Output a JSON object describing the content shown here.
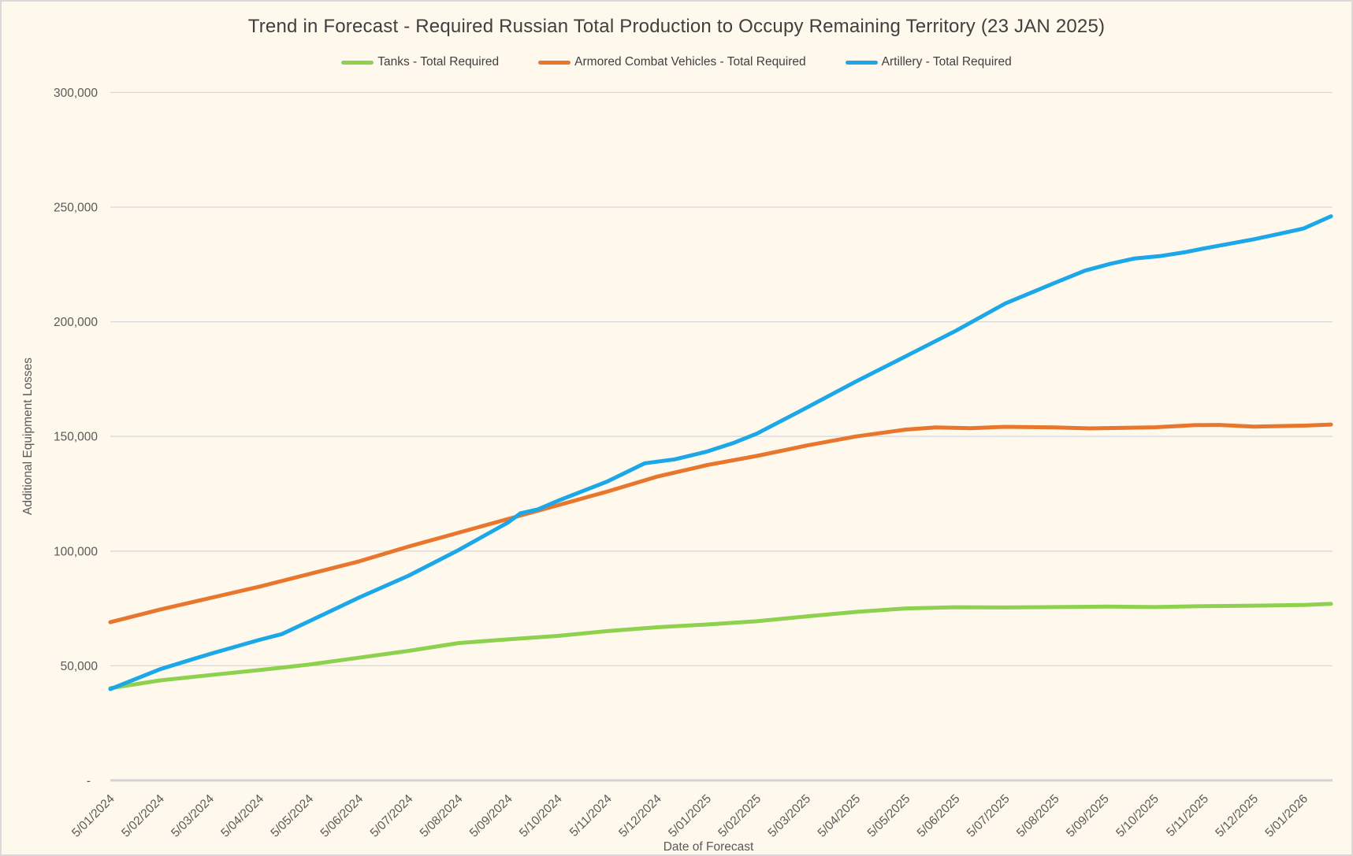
{
  "window": {
    "background_color": "#FFF9ED",
    "border_color": "#D9D9D9",
    "gridline_color": "#D9D9D9",
    "axis_line_color": "#D2D2D2",
    "title_color": "#3F3F3F",
    "tick_label_color": "#595959"
  },
  "chart_data": {
    "type": "line",
    "title": "Trend in Forecast - Required Russian Total Production to Occupy Remaining Territory (23 JAN 2025)",
    "xlabel": "Date of Forecast",
    "ylabel": "Additional Equipment Losses",
    "ylim": [
      0,
      300000
    ],
    "grid": "horizontal",
    "legend_position": "top",
    "y_ticks": [
      {
        "value": 300000,
        "label": "300,000"
      },
      {
        "value": 250000,
        "label": "250,000"
      },
      {
        "value": 200000,
        "label": "200,000"
      },
      {
        "value": 150000,
        "label": "150,000"
      },
      {
        "value": 100000,
        "label": "100,000"
      },
      {
        "value": 50000,
        "label": "50,000"
      },
      {
        "value": 0,
        "label": "-"
      }
    ],
    "categories": [
      "5/01/2024",
      "5/02/2024",
      "5/03/2024",
      "5/04/2024",
      "5/05/2024",
      "5/06/2024",
      "5/07/2024",
      "5/08/2024",
      "5/09/2024",
      "5/10/2024",
      "5/11/2024",
      "5/12/2024",
      "5/01/2025",
      "5/02/2025",
      "5/03/2025",
      "5/04/2025",
      "5/05/2025",
      "5/06/2025",
      "5/07/2025",
      "5/08/2025",
      "5/09/2025",
      "5/10/2025",
      "5/11/2025",
      "5/12/2025",
      "5/01/2026"
    ],
    "series": [
      {
        "id": "tanks",
        "name": "Tanks - Total Required",
        "color": "#8ED14F",
        "points": [
          [
            0,
            40200
          ],
          [
            1,
            43600
          ],
          [
            2,
            45900
          ],
          [
            3,
            48100
          ],
          [
            4,
            50500
          ],
          [
            5,
            53500
          ],
          [
            6,
            56500
          ],
          [
            7,
            59900
          ],
          [
            8,
            61500
          ],
          [
            9,
            63000
          ],
          [
            10,
            65100
          ],
          [
            11,
            66800
          ],
          [
            12,
            68000
          ],
          [
            13,
            69400
          ],
          [
            14,
            71500
          ],
          [
            15,
            73500
          ],
          [
            16,
            75000
          ],
          [
            17,
            75500
          ],
          [
            18,
            75400
          ],
          [
            19,
            75600
          ],
          [
            20,
            75800
          ],
          [
            21,
            75600
          ],
          [
            22,
            76000
          ],
          [
            23,
            76200
          ],
          [
            24,
            76500
          ],
          [
            24.55,
            77000
          ]
        ]
      },
      {
        "id": "armored-combat-vehicles",
        "name": "Armored Combat Vehicles - Total Required",
        "color": "#E8772D",
        "points": [
          [
            0,
            69000
          ],
          [
            1,
            74500
          ],
          [
            2,
            79500
          ],
          [
            3,
            84500
          ],
          [
            4,
            90000
          ],
          [
            5,
            95500
          ],
          [
            6,
            102000
          ],
          [
            7,
            108000
          ],
          [
            8,
            114000
          ],
          [
            9,
            120000
          ],
          [
            10,
            126000
          ],
          [
            11,
            132500
          ],
          [
            12,
            137500
          ],
          [
            13,
            141500
          ],
          [
            14,
            146000
          ],
          [
            15,
            150000
          ],
          [
            16,
            153000
          ],
          [
            16.6,
            153900
          ],
          [
            17.3,
            153600
          ],
          [
            18,
            154200
          ],
          [
            19,
            153900
          ],
          [
            19.7,
            153500
          ],
          [
            20.3,
            153700
          ],
          [
            21,
            154000
          ],
          [
            21.8,
            154900
          ],
          [
            22.3,
            155000
          ],
          [
            23,
            154300
          ],
          [
            24,
            154700
          ],
          [
            24.55,
            155200
          ]
        ]
      },
      {
        "id": "artillery",
        "name": "Artillery - Total Required",
        "color": "#1BA7E8",
        "points": [
          [
            0,
            39800
          ],
          [
            1,
            48500
          ],
          [
            2,
            55100
          ],
          [
            3,
            61300
          ],
          [
            3.45,
            63800
          ],
          [
            4,
            69400
          ],
          [
            5,
            79700
          ],
          [
            6,
            89300
          ],
          [
            7,
            100400
          ],
          [
            8,
            112500
          ],
          [
            8.25,
            116500
          ],
          [
            8.6,
            118200
          ],
          [
            9,
            121900
          ],
          [
            10,
            130400
          ],
          [
            10.75,
            138300
          ],
          [
            11.35,
            140000
          ],
          [
            12,
            143400
          ],
          [
            12.55,
            147300
          ],
          [
            13,
            151200
          ],
          [
            14,
            162500
          ],
          [
            15,
            174000
          ],
          [
            16,
            185000
          ],
          [
            17,
            196000
          ],
          [
            18,
            208000
          ],
          [
            19,
            217000
          ],
          [
            19.6,
            222300
          ],
          [
            20.1,
            225200
          ],
          [
            20.6,
            227600
          ],
          [
            21.1,
            228600
          ],
          [
            21.6,
            230300
          ],
          [
            22,
            232000
          ],
          [
            23,
            236000
          ],
          [
            23.5,
            238300
          ],
          [
            24,
            240700
          ],
          [
            24.55,
            246000
          ]
        ]
      }
    ]
  }
}
